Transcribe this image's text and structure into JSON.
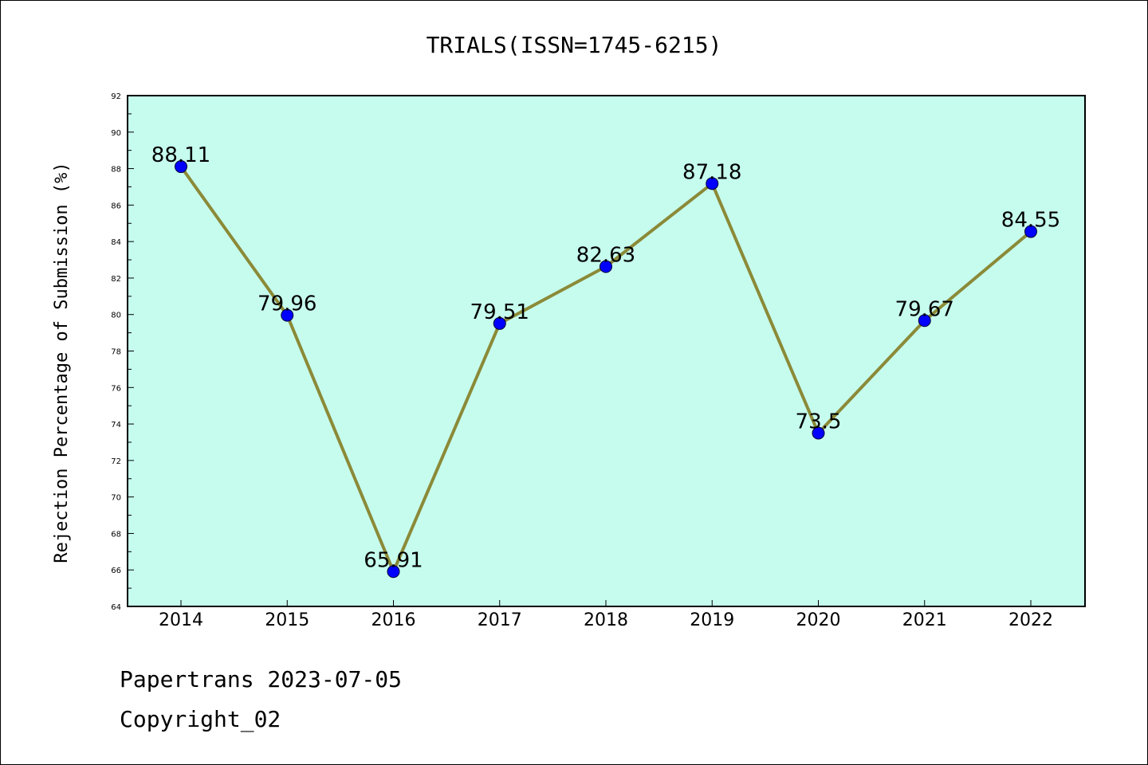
{
  "chart_data": {
    "type": "line",
    "title": "TRIALS(ISSN=1745-6215)",
    "xlabel": "",
    "ylabel": "Rejection Percentage of Submission (%)",
    "categories": [
      "2014",
      "2015",
      "2016",
      "2017",
      "2018",
      "2019",
      "2020",
      "2021",
      "2022"
    ],
    "series": [
      {
        "values": [
          88.11,
          79.96,
          65.91,
          79.51,
          82.63,
          87.18,
          73.5,
          79.67,
          84.55
        ],
        "labels": [
          "88.11",
          "79.96",
          "65.91",
          "79.51",
          "82.63",
          "87.18",
          "73.5",
          "79.67",
          "84.55"
        ]
      }
    ],
    "ylim": [
      64,
      92
    ],
    "yticks": [
      "64",
      "66",
      "68",
      "70",
      "72",
      "74",
      "76",
      "78",
      "80",
      "82",
      "84",
      "86",
      "88",
      "90",
      "92"
    ],
    "grid": false,
    "legend": "none",
    "colors": {
      "plot_background": "#c6fcee",
      "line": "#8b8a38",
      "marker": "#0000ff",
      "axes": "#000000"
    }
  },
  "footer": {
    "line1": "Papertrans 2023-07-05",
    "line2": "Copyright_02"
  }
}
